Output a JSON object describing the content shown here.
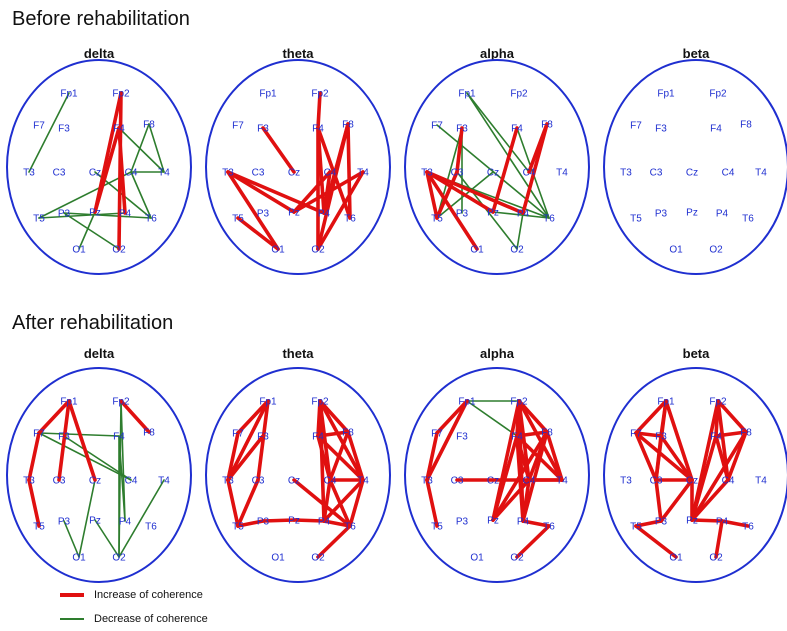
{
  "titles": {
    "before": "Before rehabilitation",
    "after": "After rehabilitation"
  },
  "bands": [
    "delta",
    "theta",
    "alpha",
    "beta"
  ],
  "electrodes": [
    "Fp1",
    "Fp2",
    "F7",
    "F3",
    "F4",
    "F8",
    "T3",
    "C3",
    "Cz",
    "C4",
    "T4",
    "T5",
    "P3",
    "Pz",
    "P4",
    "T6",
    "O1",
    "O2"
  ],
  "colors": {
    "increase": "#e01010",
    "decrease": "#2e7d2e",
    "head": "#1f2fd0",
    "label": "#1f2fd0"
  },
  "legend": {
    "increase": "Increase of coherence",
    "decrease": "Decrease of coherence"
  },
  "panels": [
    {
      "phase": "before",
      "band": "delta",
      "inc": [
        [
          "Fp2",
          "O2"
        ],
        [
          "F4",
          "P4"
        ],
        [
          "F4",
          "Pz"
        ],
        [
          "Fp2",
          "Pz"
        ]
      ],
      "dec": [
        [
          "Fp1",
          "T3"
        ],
        [
          "F4",
          "T4"
        ],
        [
          "F8",
          "T4"
        ],
        [
          "F8",
          "C4"
        ],
        [
          "C4",
          "T4"
        ],
        [
          "C4",
          "T5"
        ],
        [
          "P3",
          "T6"
        ],
        [
          "Cz",
          "T6"
        ],
        [
          "C4",
          "T6"
        ],
        [
          "Pz",
          "O1"
        ],
        [
          "P3",
          "O2"
        ],
        [
          "T5",
          "P4"
        ]
      ]
    },
    {
      "phase": "before",
      "band": "theta",
      "inc": [
        [
          "T3",
          "O1"
        ],
        [
          "T3",
          "Pz"
        ],
        [
          "T3",
          "P4"
        ],
        [
          "F3",
          "Cz"
        ],
        [
          "Fp2",
          "F4"
        ],
        [
          "F4",
          "P4"
        ],
        [
          "F4",
          "O2"
        ],
        [
          "F8",
          "T6"
        ],
        [
          "F8",
          "O2"
        ],
        [
          "F8",
          "P4"
        ],
        [
          "T4",
          "Pz"
        ],
        [
          "T4",
          "O2"
        ],
        [
          "C4",
          "P4"
        ],
        [
          "Pz",
          "C4"
        ],
        [
          "T5",
          "O1"
        ],
        [
          "F4",
          "T6"
        ]
      ],
      "dec": []
    },
    {
      "phase": "before",
      "band": "alpha",
      "inc": [
        [
          "T3",
          "O1"
        ],
        [
          "T3",
          "P4"
        ],
        [
          "T3",
          "T5"
        ],
        [
          "T3",
          "Pz"
        ],
        [
          "F3",
          "C3"
        ],
        [
          "F4",
          "Pz"
        ],
        [
          "F8",
          "P4"
        ],
        [
          "F8",
          "C4"
        ],
        [
          "C3",
          "T5"
        ]
      ],
      "dec": [
        [
          "Fp1",
          "T6"
        ],
        [
          "Fp1",
          "C4"
        ],
        [
          "F7",
          "T6"
        ],
        [
          "F3",
          "P3"
        ],
        [
          "C3",
          "O2"
        ],
        [
          "Cz",
          "T5"
        ],
        [
          "Pz",
          "T6"
        ],
        [
          "P4",
          "O2"
        ],
        [
          "F4",
          "T6"
        ],
        [
          "T3",
          "T6"
        ],
        [
          "F3",
          "T5"
        ]
      ]
    },
    {
      "phase": "before",
      "band": "beta",
      "inc": [],
      "dec": []
    },
    {
      "phase": "after",
      "band": "delta",
      "inc": [
        [
          "Fp1",
          "Cz"
        ],
        [
          "Fp1",
          "F7"
        ],
        [
          "Fp1",
          "C3"
        ],
        [
          "Fp2",
          "F8"
        ],
        [
          "F7",
          "T3"
        ],
        [
          "T3",
          "T5"
        ]
      ],
      "dec": [
        [
          "F7",
          "F4"
        ],
        [
          "F7",
          "C4"
        ],
        [
          "F3",
          "C4"
        ],
        [
          "Fp2",
          "O2"
        ],
        [
          "Fp2",
          "P4"
        ],
        [
          "F4",
          "O2"
        ],
        [
          "Cz",
          "O1"
        ],
        [
          "P3",
          "O1"
        ],
        [
          "Pz",
          "O2"
        ],
        [
          "T4",
          "O2"
        ],
        [
          "F4",
          "P4"
        ]
      ]
    },
    {
      "phase": "after",
      "band": "theta",
      "inc": [
        [
          "Fp1",
          "F7"
        ],
        [
          "Fp1",
          "T3"
        ],
        [
          "Fp1",
          "C3"
        ],
        [
          "F7",
          "T3"
        ],
        [
          "F3",
          "T3"
        ],
        [
          "T3",
          "T5"
        ],
        [
          "C3",
          "T5"
        ],
        [
          "T5",
          "P3"
        ],
        [
          "P3",
          "Pz"
        ],
        [
          "Pz",
          "P4"
        ],
        [
          "P4",
          "T6"
        ],
        [
          "Fp2",
          "F4"
        ],
        [
          "Fp2",
          "F8"
        ],
        [
          "Fp2",
          "C4"
        ],
        [
          "Fp2",
          "T4"
        ],
        [
          "F4",
          "F8"
        ],
        [
          "F4",
          "T4"
        ],
        [
          "F8",
          "T4"
        ],
        [
          "C4",
          "T4"
        ],
        [
          "F4",
          "C4"
        ],
        [
          "C4",
          "P4"
        ],
        [
          "T4",
          "P4"
        ],
        [
          "T4",
          "T6"
        ],
        [
          "C4",
          "T6"
        ],
        [
          "T6",
          "O2"
        ],
        [
          "F8",
          "C4"
        ],
        [
          "Fp2",
          "P4"
        ],
        [
          "Cz",
          "T6"
        ]
      ],
      "dec": []
    },
    {
      "phase": "after",
      "band": "alpha",
      "inc": [
        [
          "Fp1",
          "F7"
        ],
        [
          "Fp1",
          "T3"
        ],
        [
          "F7",
          "T3"
        ],
        [
          "T3",
          "T5"
        ],
        [
          "C3",
          "Cz"
        ],
        [
          "Cz",
          "T4"
        ],
        [
          "Fp2",
          "F4"
        ],
        [
          "Fp2",
          "F8"
        ],
        [
          "Fp2",
          "C4"
        ],
        [
          "Fp2",
          "T4"
        ],
        [
          "F4",
          "F8"
        ],
        [
          "F4",
          "T4"
        ],
        [
          "F8",
          "T4"
        ],
        [
          "F4",
          "C4"
        ],
        [
          "C4",
          "T4"
        ],
        [
          "F4",
          "Pz"
        ],
        [
          "F8",
          "Pz"
        ],
        [
          "F8",
          "P4"
        ],
        [
          "C4",
          "Pz"
        ],
        [
          "C4",
          "P4"
        ],
        [
          "F4",
          "P4"
        ],
        [
          "P4",
          "T6"
        ],
        [
          "T6",
          "O2"
        ],
        [
          "Fp2",
          "Pz"
        ],
        [
          "F8",
          "C4"
        ],
        [
          "Fp2",
          "P4"
        ]
      ],
      "dec": [
        [
          "Fp1",
          "Fp2"
        ],
        [
          "Fp1",
          "F4"
        ]
      ]
    },
    {
      "phase": "after",
      "band": "beta",
      "inc": [
        [
          "Fp1",
          "F7"
        ],
        [
          "Fp1",
          "F3"
        ],
        [
          "Fp1",
          "C3"
        ],
        [
          "Fp1",
          "Cz"
        ],
        [
          "F7",
          "F3"
        ],
        [
          "F7",
          "C3"
        ],
        [
          "F3",
          "C3"
        ],
        [
          "F3",
          "Cz"
        ],
        [
          "C3",
          "Cz"
        ],
        [
          "F7",
          "Cz"
        ],
        [
          "C3",
          "P3"
        ],
        [
          "Cz",
          "P3"
        ],
        [
          "P3",
          "T5"
        ],
        [
          "T5",
          "O1"
        ],
        [
          "Fp2",
          "F4"
        ],
        [
          "Fp2",
          "F8"
        ],
        [
          "Fp2",
          "C4"
        ],
        [
          "F4",
          "F8"
        ],
        [
          "F4",
          "C4"
        ],
        [
          "F4",
          "Pz"
        ],
        [
          "F8",
          "Pz"
        ],
        [
          "C4",
          "Pz"
        ],
        [
          "Fp2",
          "Pz"
        ],
        [
          "Pz",
          "P4"
        ],
        [
          "P4",
          "T6"
        ],
        [
          "P4",
          "O2"
        ],
        [
          "Cz",
          "Pz"
        ],
        [
          "F8",
          "C4"
        ]
      ],
      "dec": []
    }
  ]
}
